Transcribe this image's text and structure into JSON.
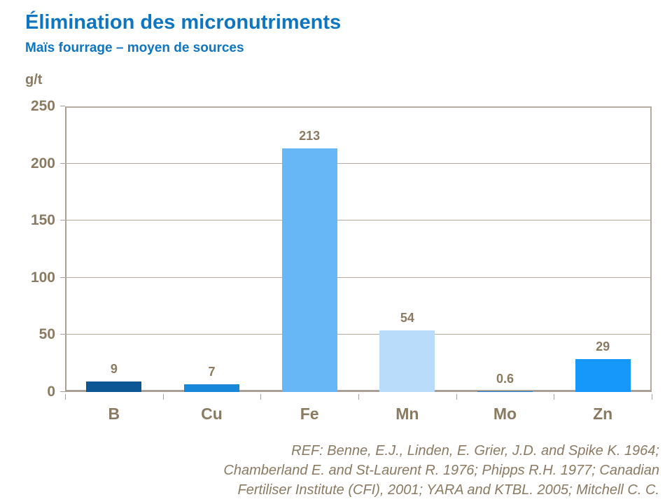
{
  "header": {
    "title": "Élimination des micronutriments",
    "subtitle": "Maïs fourrage – moyen de sources"
  },
  "chart_data": {
    "type": "bar",
    "title": "Élimination des micronutriments",
    "subtitle": "Maïs fourrage – moyen de sources",
    "categories": [
      "B",
      "Cu",
      "Fe",
      "Mn",
      "Mo",
      "Zn"
    ],
    "values": [
      9,
      7,
      213,
      54,
      0.6,
      29
    ],
    "value_labels": [
      "9",
      "7",
      "213",
      "54",
      "0.6",
      "29"
    ],
    "bar_colors": [
      "#0d5794",
      "#1787d9",
      "#67b7f7",
      "#b9dcfb",
      "#1779cf",
      "#1598fa"
    ],
    "xlabel": "",
    "ylabel": "g/t",
    "ylim": [
      0,
      250
    ],
    "yticks": [
      0,
      50,
      100,
      150,
      200,
      250
    ],
    "grid": true,
    "legend_position": "none"
  },
  "footer": {
    "reference_lines": [
      "REF: Benne, E.J., Linden, E. Grier, J.D. and Spike K. 1964;",
      "Chamberland  E. and St-Laurent R. 1976; Phipps R.H. 1977; Canadian",
      "Fertiliser Institute (CFI), 2001; YARA and KTBL. 2005; Mitchell C. C."
    ]
  },
  "colors": {
    "title_blue": "#0e76c1",
    "axis_text": "#8b7a62",
    "footer_text": "#8b7a62",
    "gridline": "#b5ac9f",
    "axis_line": "#a8a096",
    "plot_border": "#b5ab9e",
    "background": "#ffffff"
  }
}
